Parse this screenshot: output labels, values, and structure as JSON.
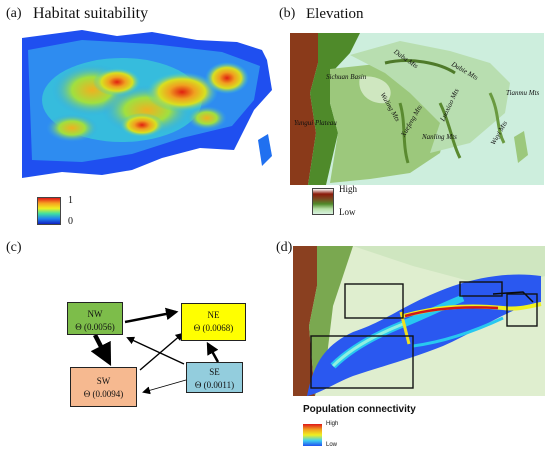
{
  "panels": {
    "a": {
      "label": "(a)",
      "title": "Habitat suitability",
      "legend": {
        "max": "1",
        "min": "0"
      }
    },
    "b": {
      "label": "(b)",
      "title": "Elevation",
      "legend": {
        "high": "High",
        "low": "Low"
      },
      "places": [
        "Sichuan Basin",
        "Daba Mts",
        "Dabie Mts",
        "Wuling Mts",
        "Xuefeng Mts",
        "Luoxiao Mts",
        "Nanling Mts",
        "Tianmu Mts",
        "Wuyi Mts",
        "Yungui Plateau"
      ]
    },
    "c": {
      "label": "(c)",
      "nodes": {
        "nw": {
          "name": "NW",
          "theta": "Θ (0.0056)",
          "color": "#7dbd4a"
        },
        "ne": {
          "name": "NE",
          "theta": "Θ (0.0068)",
          "color": "#ffff00"
        },
        "sw": {
          "name": "SW",
          "theta": "Θ (0.0094)",
          "color": "#f6b990"
        },
        "se": {
          "name": "SE",
          "theta": "Θ (0.0011)",
          "color": "#93cddd"
        }
      }
    },
    "d": {
      "label": "(d)",
      "legend_title": "Population connectivity",
      "legend": {
        "high": "High",
        "low": "Low"
      }
    }
  }
}
